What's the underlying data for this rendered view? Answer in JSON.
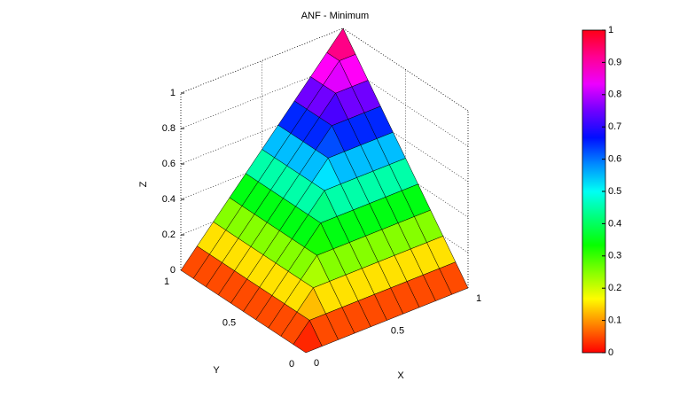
{
  "chart_data": {
    "type": "surface",
    "title": "ANF - Minimum",
    "xlabel": "X",
    "ylabel": "Y",
    "zlabel": "Z",
    "x": [
      0,
      0.1,
      0.2,
      0.3,
      0.4,
      0.5,
      0.6,
      0.7,
      0.8,
      0.9,
      1
    ],
    "y": [
      0,
      0.1,
      0.2,
      0.3,
      0.4,
      0.5,
      0.6,
      0.7,
      0.8,
      0.9,
      1
    ],
    "z": [
      [
        0,
        0,
        0,
        0,
        0,
        0,
        0,
        0,
        0,
        0,
        0
      ],
      [
        0,
        0.1,
        0.1,
        0.1,
        0.1,
        0.1,
        0.1,
        0.1,
        0.1,
        0.1,
        0.1
      ],
      [
        0,
        0.1,
        0.2,
        0.2,
        0.2,
        0.2,
        0.2,
        0.2,
        0.2,
        0.2,
        0.2
      ],
      [
        0,
        0.1,
        0.2,
        0.3,
        0.3,
        0.3,
        0.3,
        0.3,
        0.3,
        0.3,
        0.3
      ],
      [
        0,
        0.1,
        0.2,
        0.3,
        0.4,
        0.4,
        0.4,
        0.4,
        0.4,
        0.4,
        0.4
      ],
      [
        0,
        0.1,
        0.2,
        0.3,
        0.4,
        0.5,
        0.5,
        0.5,
        0.5,
        0.5,
        0.5
      ],
      [
        0,
        0.1,
        0.2,
        0.3,
        0.4,
        0.5,
        0.6,
        0.6,
        0.6,
        0.6,
        0.6
      ],
      [
        0,
        0.1,
        0.2,
        0.3,
        0.4,
        0.5,
        0.6,
        0.7,
        0.7,
        0.7,
        0.7
      ],
      [
        0,
        0.1,
        0.2,
        0.3,
        0.4,
        0.5,
        0.6,
        0.7,
        0.8,
        0.8,
        0.8
      ],
      [
        0,
        0.1,
        0.2,
        0.3,
        0.4,
        0.5,
        0.6,
        0.7,
        0.8,
        0.9,
        0.9
      ],
      [
        0,
        0.1,
        0.2,
        0.3,
        0.4,
        0.5,
        0.6,
        0.7,
        0.8,
        0.9,
        1
      ]
    ],
    "xlim": [
      0,
      1
    ],
    "ylim": [
      0,
      1
    ],
    "zlim": [
      0,
      1
    ],
    "xticks": [
      0,
      0.5,
      1
    ],
    "yticks": [
      0,
      0.5,
      1
    ],
    "zticks": [
      0,
      0.2,
      0.4,
      0.6,
      0.8,
      1
    ],
    "grid": true,
    "colormap": "hsv",
    "clim": [
      0,
      1
    ],
    "cticks": [
      0,
      0.1,
      0.2,
      0.3,
      0.4,
      0.5,
      0.6,
      0.7,
      0.8,
      0.9,
      1
    ]
  }
}
